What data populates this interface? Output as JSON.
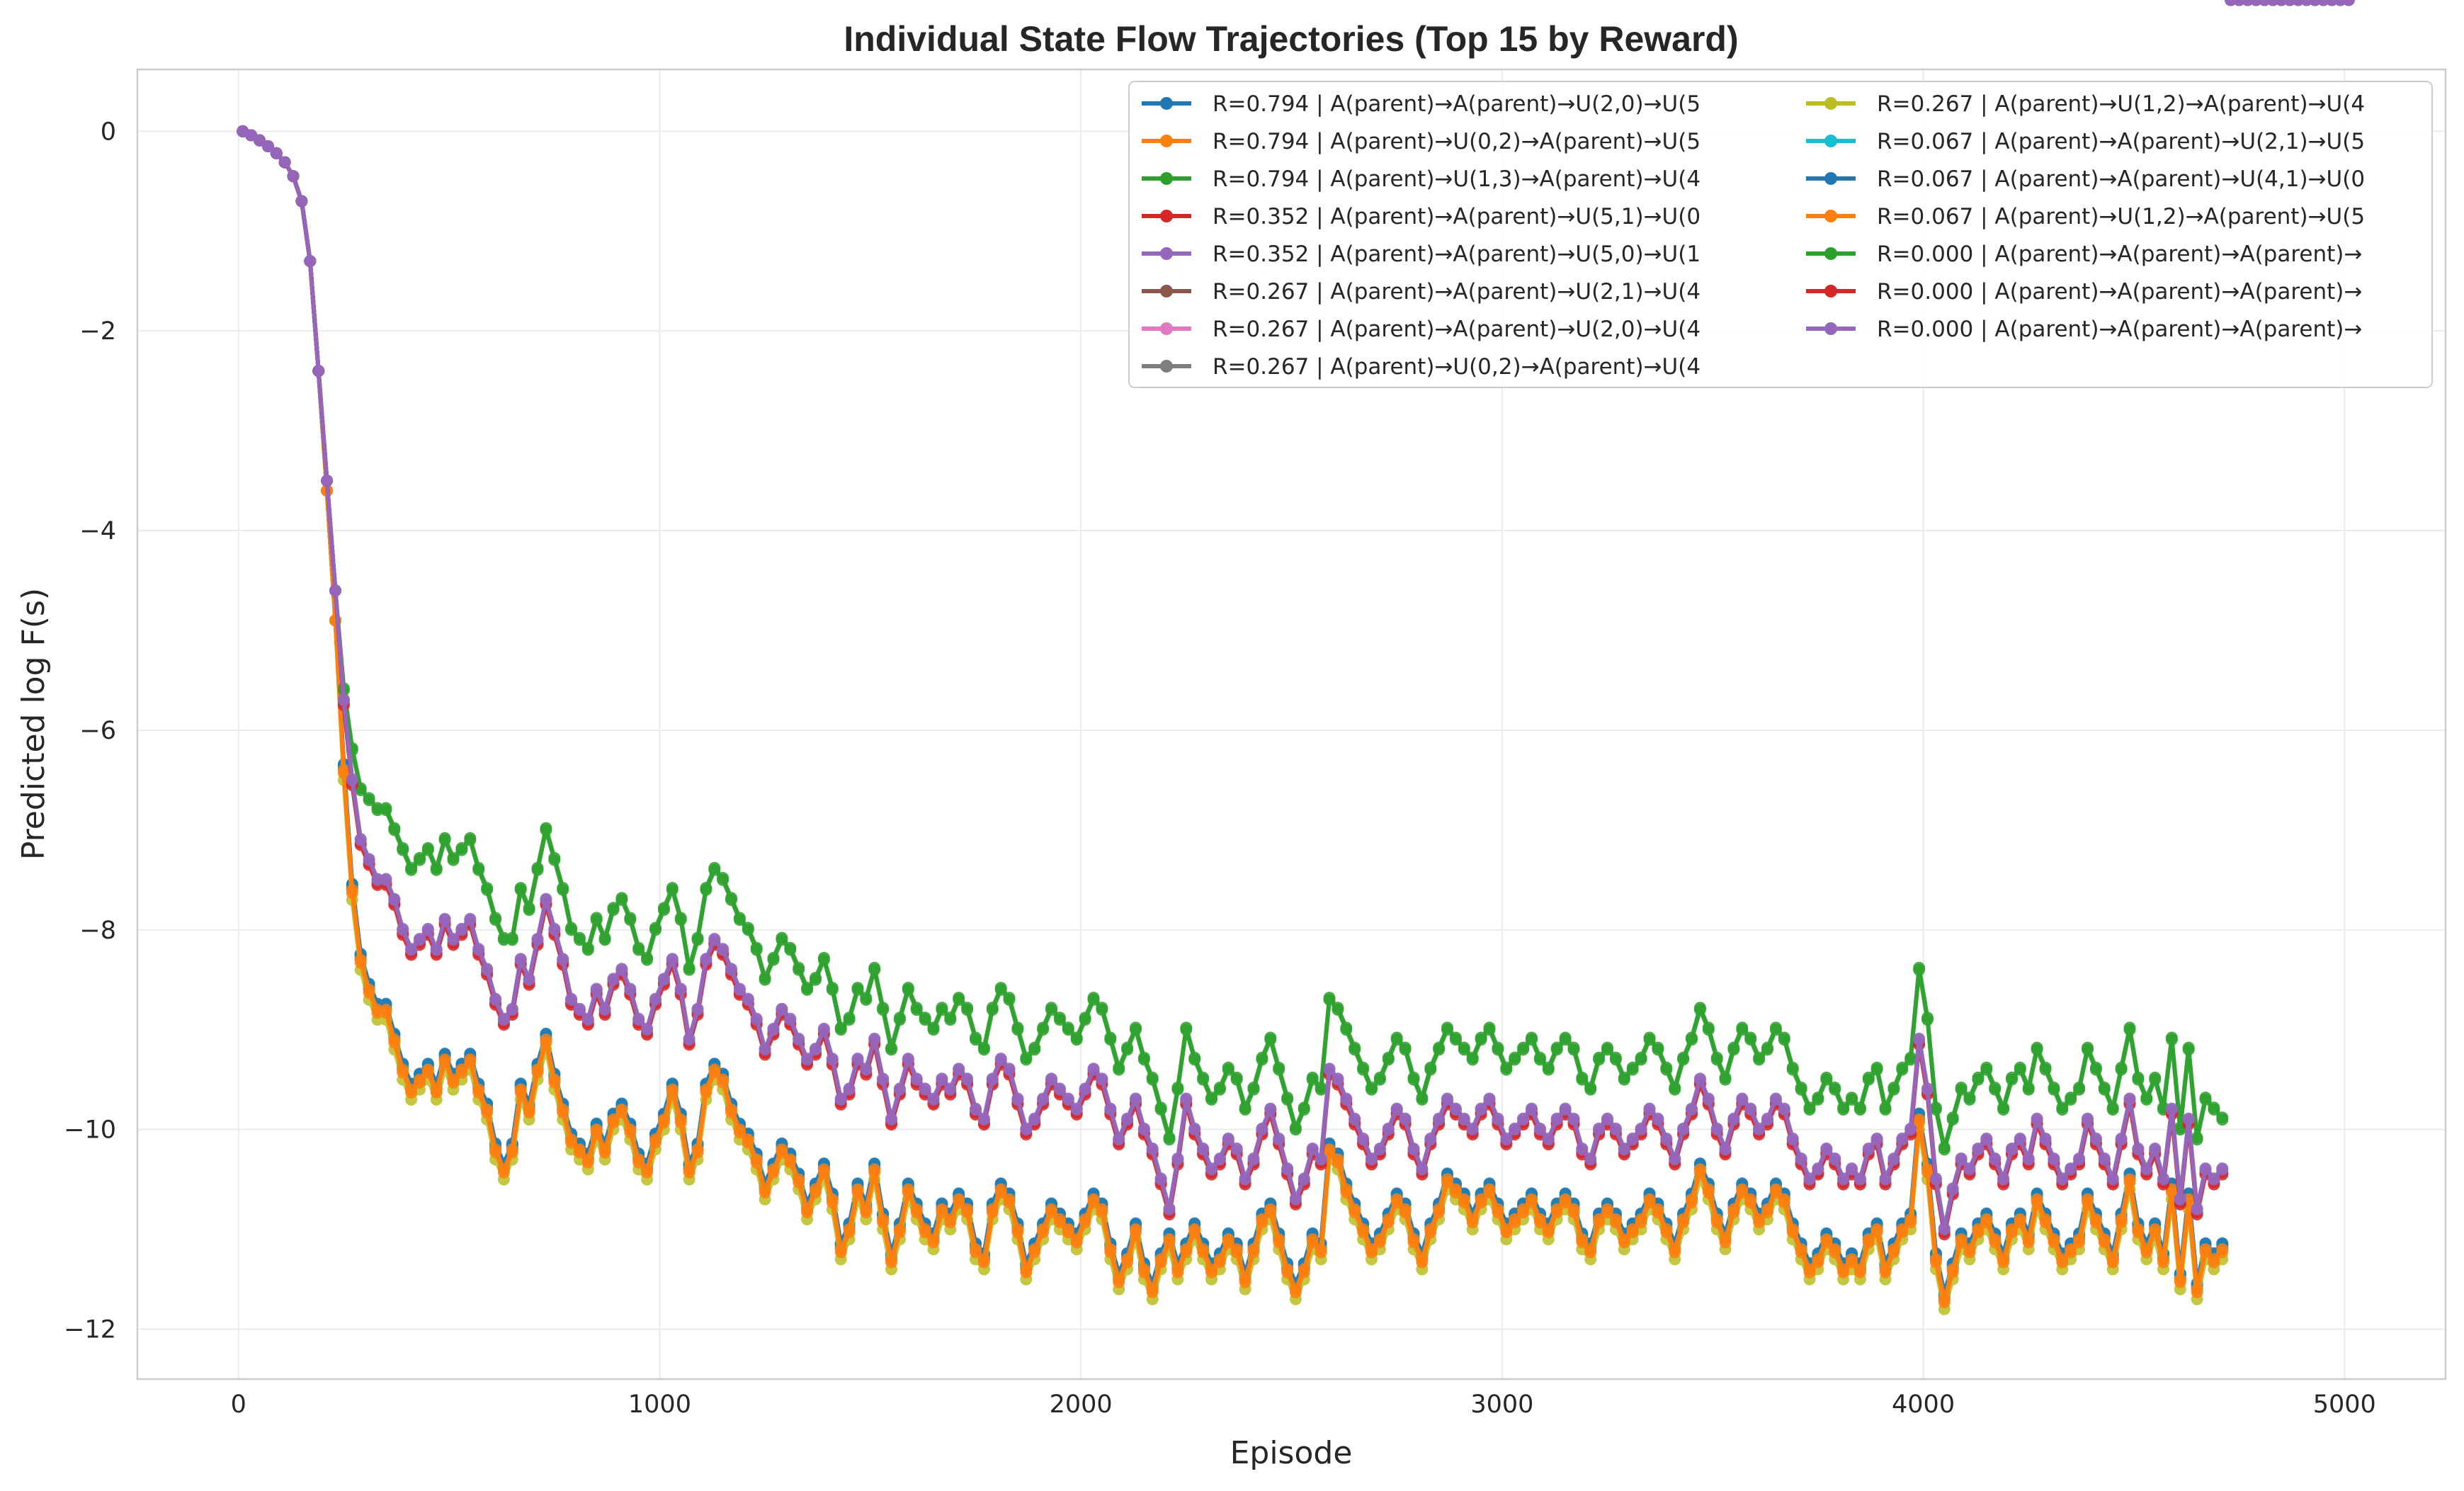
{
  "chart_data": {
    "type": "line",
    "title": "Individual State Flow Trajectories (Top 15 by Reward)",
    "xlabel": "Episode",
    "ylabel": "Predicted log F(s)",
    "xlim": [
      -240,
      5240
    ],
    "ylim": [
      -12.5,
      0.62
    ],
    "xticks": [
      0,
      1000,
      2000,
      3000,
      4000,
      5000
    ],
    "xtick_labels": [
      "0",
      "1000",
      "2000",
      "3000",
      "4000",
      "5000"
    ],
    "yticks": [
      0,
      -2,
      -4,
      -6,
      -8,
      -10,
      -12
    ],
    "ytick_labels": [
      "0",
      "−2",
      "−4",
      "−6",
      "−8",
      "−10",
      "−12"
    ],
    "grid": true,
    "legend_position": "top-right",
    "legend_columns": 2,
    "marker": "circle",
    "x": {
      "start": 10,
      "stop": 5000,
      "step": 20
    },
    "groups": {
      "high": [
        0,
        -0.04,
        -0.09,
        -0.15,
        -0.22,
        -0.31,
        -0.45,
        -0.7,
        -1.3,
        -2.4,
        -3.5,
        -4.6,
        -5.6,
        -6.2,
        -6.6,
        -6.7,
        -6.8,
        -6.8,
        -7.0,
        -7.2,
        -7.4,
        -7.3,
        -7.2,
        -7.4,
        -7.1,
        -7.3,
        -7.2,
        -7.1,
        -7.4,
        -7.6,
        -7.9,
        -8.1,
        -8.1,
        -7.6,
        -7.8,
        -7.4,
        -7.0,
        -7.3,
        -7.6,
        -8.0,
        -8.1,
        -8.2,
        -7.9,
        -8.1,
        -7.8,
        -7.7,
        -7.9,
        -8.2,
        -8.3,
        -8.0,
        -7.8,
        -7.6,
        -7.9,
        -8.4,
        -8.1,
        -7.6,
        -7.4,
        -7.5,
        -7.7,
        -7.9,
        -8.0,
        -8.2,
        -8.5,
        -8.3,
        -8.1,
        -8.2,
        -8.4,
        -8.6,
        -8.5,
        -8.3,
        -8.6,
        -9.0,
        -8.9,
        -8.6,
        -8.7,
        -8.4,
        -8.8,
        -9.2,
        -8.9,
        -8.6,
        -8.8,
        -8.9,
        -9.0,
        -8.8,
        -8.9,
        -8.7,
        -8.8,
        -9.1,
        -9.2,
        -8.8,
        -8.6,
        -8.7,
        -9.0,
        -9.3,
        -9.2,
        -9.0,
        -8.8,
        -8.9,
        -9.0,
        -9.1,
        -8.9,
        -8.7,
        -8.8,
        -9.1,
        -9.4,
        -9.2,
        -9.0,
        -9.3,
        -9.5,
        -9.8,
        -10.1,
        -9.6,
        -9.0,
        -9.3,
        -9.5,
        -9.7,
        -9.6,
        -9.4,
        -9.5,
        -9.8,
        -9.6,
        -9.3,
        -9.1,
        -9.4,
        -9.7,
        -10.0,
        -9.8,
        -9.5,
        -9.6,
        -8.7,
        -8.8,
        -9.0,
        -9.2,
        -9.4,
        -9.6,
        -9.5,
        -9.3,
        -9.1,
        -9.2,
        -9.5,
        -9.7,
        -9.4,
        -9.2,
        -9.0,
        -9.1,
        -9.2,
        -9.3,
        -9.1,
        -9.0,
        -9.2,
        -9.4,
        -9.3,
        -9.2,
        -9.1,
        -9.3,
        -9.4,
        -9.2,
        -9.1,
        -9.2,
        -9.5,
        -9.6,
        -9.3,
        -9.2,
        -9.3,
        -9.5,
        -9.4,
        -9.3,
        -9.1,
        -9.2,
        -9.4,
        -9.6,
        -9.3,
        -9.1,
        -8.8,
        -9.0,
        -9.3,
        -9.5,
        -9.2,
        -9.0,
        -9.1,
        -9.3,
        -9.2,
        -9.0,
        -9.1,
        -9.4,
        -9.6,
        -9.8,
        -9.7,
        -9.5,
        -9.6,
        -9.8,
        -9.7,
        -9.8,
        -9.5,
        -9.4,
        -9.8,
        -9.6,
        -9.4,
        -9.3,
        -8.4,
        -8.9,
        -9.8,
        -10.2,
        -9.9,
        -9.6,
        -9.7,
        -9.5,
        -9.4,
        -9.6,
        -9.8,
        -9.5,
        -9.4,
        -9.6,
        -9.2,
        -9.4,
        -9.6,
        -9.8,
        -9.7,
        -9.6,
        -9.2,
        -9.4,
        -9.6,
        -9.8,
        -9.4,
        -9.0,
        -9.5,
        -9.7,
        -9.5,
        -9.8,
        -9.1,
        -10.0,
        -9.2,
        -10.1,
        -9.7,
        -9.8,
        -9.9
      ],
      "mid": [
        0,
        -0.04,
        -0.09,
        -0.15,
        -0.22,
        -0.31,
        -0.45,
        -0.7,
        -1.3,
        -2.4,
        -3.5,
        -4.6,
        -5.7,
        -6.5,
        -7.1,
        -7.3,
        -7.5,
        -7.5,
        -7.7,
        -8.0,
        -8.2,
        -8.1,
        -8.0,
        -8.2,
        -7.9,
        -8.1,
        -8.0,
        -7.9,
        -8.2,
        -8.4,
        -8.7,
        -8.9,
        -8.8,
        -8.3,
        -8.5,
        -8.1,
        -7.7,
        -8.0,
        -8.3,
        -8.7,
        -8.8,
        -8.9,
        -8.6,
        -8.8,
        -8.5,
        -8.4,
        -8.6,
        -8.9,
        -9.0,
        -8.7,
        -8.5,
        -8.3,
        -8.6,
        -9.1,
        -8.8,
        -8.3,
        -8.1,
        -8.2,
        -8.4,
        -8.6,
        -8.7,
        -8.9,
        -9.2,
        -9.0,
        -8.8,
        -8.9,
        -9.1,
        -9.3,
        -9.2,
        -9.0,
        -9.3,
        -9.7,
        -9.6,
        -9.3,
        -9.4,
        -9.1,
        -9.5,
        -9.9,
        -9.6,
        -9.3,
        -9.5,
        -9.6,
        -9.7,
        -9.5,
        -9.6,
        -9.4,
        -9.5,
        -9.8,
        -9.9,
        -9.5,
        -9.3,
        -9.4,
        -9.7,
        -10.0,
        -9.9,
        -9.7,
        -9.5,
        -9.6,
        -9.7,
        -9.8,
        -9.6,
        -9.4,
        -9.5,
        -9.8,
        -10.1,
        -9.9,
        -9.7,
        -10.0,
        -10.2,
        -10.5,
        -10.8,
        -10.3,
        -9.7,
        -10.0,
        -10.2,
        -10.4,
        -10.3,
        -10.1,
        -10.2,
        -10.5,
        -10.3,
        -10.0,
        -9.8,
        -10.1,
        -10.4,
        -10.7,
        -10.5,
        -10.2,
        -10.3,
        -9.4,
        -9.5,
        -9.7,
        -9.9,
        -10.1,
        -10.3,
        -10.2,
        -10.0,
        -9.8,
        -9.9,
        -10.2,
        -10.4,
        -10.1,
        -9.9,
        -9.7,
        -9.8,
        -9.9,
        -10.0,
        -9.8,
        -9.7,
        -9.9,
        -10.1,
        -10.0,
        -9.9,
        -9.8,
        -10.0,
        -10.1,
        -9.9,
        -9.8,
        -9.9,
        -10.2,
        -10.3,
        -10.0,
        -9.9,
        -10.0,
        -10.2,
        -10.1,
        -10.0,
        -9.8,
        -9.9,
        -10.1,
        -10.3,
        -10.0,
        -9.8,
        -9.5,
        -9.7,
        -10.0,
        -10.2,
        -9.9,
        -9.7,
        -9.8,
        -10.0,
        -9.9,
        -9.7,
        -9.8,
        -10.1,
        -10.3,
        -10.5,
        -10.4,
        -10.2,
        -10.3,
        -10.5,
        -10.4,
        -10.5,
        -10.2,
        -10.1,
        -10.5,
        -10.3,
        -10.1,
        -10.0,
        -9.1,
        -9.6,
        -10.5,
        -11.0,
        -10.6,
        -10.3,
        -10.4,
        -10.2,
        -10.1,
        -10.3,
        -10.5,
        -10.2,
        -10.1,
        -10.3,
        -9.9,
        -10.1,
        -10.3,
        -10.5,
        -10.4,
        -10.3,
        -9.9,
        -10.1,
        -10.3,
        -10.5,
        -10.1,
        -9.7,
        -10.2,
        -10.4,
        -10.2,
        -10.5,
        -9.8,
        -10.7,
        -9.9,
        -10.8,
        -10.4,
        -10.5,
        -10.4
      ],
      "low": [
        0,
        -0.04,
        -0.09,
        -0.15,
        -0.22,
        -0.31,
        -0.45,
        -0.7,
        -1.3,
        -2.4,
        -3.6,
        -4.9,
        -6.4,
        -7.6,
        -8.3,
        -8.6,
        -8.8,
        -8.8,
        -9.1,
        -9.4,
        -9.6,
        -9.5,
        -9.4,
        -9.6,
        -9.3,
        -9.5,
        -9.4,
        -9.3,
        -9.6,
        -9.8,
        -10.2,
        -10.4,
        -10.2,
        -9.6,
        -9.8,
        -9.4,
        -9.1,
        -9.5,
        -9.8,
        -10.1,
        -10.2,
        -10.3,
        -10.0,
        -10.2,
        -9.9,
        -9.8,
        -10.0,
        -10.3,
        -10.4,
        -10.1,
        -9.9,
        -9.6,
        -9.9,
        -10.4,
        -10.2,
        -9.6,
        -9.4,
        -9.5,
        -9.8,
        -10.0,
        -10.1,
        -10.3,
        -10.6,
        -10.4,
        -10.2,
        -10.3,
        -10.5,
        -10.8,
        -10.6,
        -10.4,
        -10.7,
        -11.2,
        -11.0,
        -10.6,
        -10.8,
        -10.4,
        -10.9,
        -11.3,
        -11.0,
        -10.6,
        -10.8,
        -11.0,
        -11.1,
        -10.8,
        -10.9,
        -10.7,
        -10.8,
        -11.2,
        -11.3,
        -10.8,
        -10.6,
        -10.7,
        -11.0,
        -11.4,
        -11.2,
        -11.0,
        -10.8,
        -10.9,
        -11.0,
        -11.1,
        -10.9,
        -10.7,
        -10.8,
        -11.2,
        -11.5,
        -11.3,
        -11.0,
        -11.4,
        -11.6,
        -11.3,
        -11.1,
        -11.4,
        -11.2,
        -11.0,
        -11.2,
        -11.4,
        -11.3,
        -11.1,
        -11.2,
        -11.5,
        -11.2,
        -10.9,
        -10.8,
        -11.1,
        -11.4,
        -11.6,
        -11.4,
        -11.1,
        -11.2,
        -10.2,
        -10.3,
        -10.6,
        -10.8,
        -11.0,
        -11.2,
        -11.1,
        -10.9,
        -10.7,
        -10.8,
        -11.1,
        -11.3,
        -11.0,
        -10.8,
        -10.5,
        -10.6,
        -10.7,
        -10.9,
        -10.7,
        -10.6,
        -10.8,
        -11.0,
        -10.9,
        -10.8,
        -10.7,
        -10.9,
        -11.0,
        -10.8,
        -10.7,
        -10.8,
        -11.1,
        -11.2,
        -10.9,
        -10.8,
        -10.9,
        -11.1,
        -11.0,
        -10.9,
        -10.7,
        -10.8,
        -11.0,
        -11.2,
        -10.9,
        -10.7,
        -10.4,
        -10.6,
        -10.9,
        -11.1,
        -10.8,
        -10.6,
        -10.7,
        -10.9,
        -10.8,
        -10.6,
        -10.7,
        -11.0,
        -11.2,
        -11.4,
        -11.3,
        -11.1,
        -11.2,
        -11.4,
        -11.3,
        -11.4,
        -11.1,
        -11.0,
        -11.4,
        -11.2,
        -11.0,
        -10.9,
        -9.9,
        -10.4,
        -11.3,
        -11.7,
        -11.4,
        -11.1,
        -11.2,
        -11.0,
        -10.9,
        -11.1,
        -11.3,
        -11.0,
        -10.9,
        -11.1,
        -10.7,
        -10.9,
        -11.1,
        -11.3,
        -11.2,
        -11.1,
        -10.7,
        -10.9,
        -11.1,
        -11.3,
        -10.9,
        -10.5,
        -11.0,
        -11.2,
        -11.0,
        -11.3,
        -10.6,
        -11.5,
        -10.7,
        -11.6,
        -11.2,
        -11.3,
        -11.2
      ]
    },
    "series": [
      {
        "name": "R=0.794 | A(parent)→A(parent)→U(2,0)→U(5",
        "color": "#1f77b4",
        "group": "low",
        "offset": 0.05
      },
      {
        "name": "R=0.794 | A(parent)→U(0,2)→A(parent)→U(5",
        "color": "#ff7f0e",
        "group": "low",
        "offset": 0.0
      },
      {
        "name": "R=0.794 | A(parent)→U(1,3)→A(parent)→U(4",
        "color": "#2ca02c",
        "group": "high",
        "offset": 0.0
      },
      {
        "name": "R=0.352 | A(parent)→A(parent)→U(5,1)→U(0",
        "color": "#d62728",
        "group": "mid",
        "offset": -0.05
      },
      {
        "name": "R=0.352 | A(parent)→A(parent)→U(5,0)→U(1",
        "color": "#9467bd",
        "group": "mid",
        "offset": 0.0
      },
      {
        "name": "R=0.267 | A(parent)→A(parent)→U(2,1)→U(4",
        "color": "#8c564b",
        "group": "low",
        "offset": 0.03
      },
      {
        "name": "R=0.267 | A(parent)→A(parent)→U(2,0)→U(4",
        "color": "#e377c2",
        "group": "low",
        "offset": 0.02
      },
      {
        "name": "R=0.267 | A(parent)→U(0,2)→A(parent)→U(4",
        "color": "#7f7f7f",
        "group": "low",
        "offset": 0.01
      },
      {
        "name": "R=0.267 | A(parent)→U(1,2)→A(parent)→U(4",
        "color": "#bcbd22",
        "group": "low",
        "offset": -0.1
      },
      {
        "name": "R=0.067 | A(parent)→A(parent)→U(2,1)→U(5",
        "color": "#17becf",
        "group": "low",
        "offset": 0.04
      },
      {
        "name": "R=0.067 | A(parent)→A(parent)→U(4,1)→U(0",
        "color": "#1f77b4",
        "group": "low",
        "offset": 0.06
      },
      {
        "name": "R=0.067 | A(parent)→U(1,2)→A(parent)→U(5",
        "color": "#ff7f0e",
        "group": "low",
        "offset": -0.03
      },
      {
        "name": "R=0.000 | A(parent)→A(parent)→A(parent)→",
        "color": "#2ca02c",
        "group": "high",
        "offset": 0.02
      },
      {
        "name": "R=0.000 | A(parent)→A(parent)→A(parent)→",
        "color": "#d62728",
        "group": "mid",
        "offset": -0.03
      },
      {
        "name": "R=0.000 | A(parent)→A(parent)→A(parent)→",
        "color": "#9467bd",
        "group": "mid",
        "offset": 0.01
      }
    ],
    "draw_order": [
      0,
      5,
      6,
      7,
      9,
      10,
      8,
      1,
      11,
      2,
      12,
      3,
      13,
      4,
      14
    ]
  }
}
